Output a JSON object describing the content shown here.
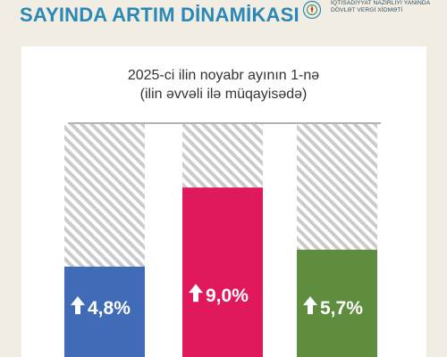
{
  "header": {
    "title": "SAYINDA ARTIM DİNAMİKASI",
    "org_lines": [
      "İQTİSADİYYAT NAZİRLİYİ YANINDA",
      "DÖVLƏT VERGİ XİDMƏTİ"
    ],
    "emblem_icon": "state-emblem-icon"
  },
  "colors": {
    "background": "#f1ede3",
    "header": "#2a88b6",
    "bar_blue": "#3f6bb7",
    "bar_pink": "#e0195c",
    "bar_green": "#5f8d3f",
    "hatch": "#c9c9c9"
  },
  "chart_data": {
    "type": "bar",
    "title": "2025-ci ilin noyabr ayının 1-nə",
    "subtitle": "(ilin əvvəli ilə müqayisədə)",
    "categories": [
      "",
      "",
      ""
    ],
    "values": [
      4.8,
      9.0,
      5.7
    ],
    "value_labels": [
      "4,8%",
      "9,0%",
      "5,7%"
    ],
    "colors": [
      "#3f6bb7",
      "#e0195c",
      "#5f8d3f"
    ],
    "ylim": [
      0,
      10
    ],
    "grid": false,
    "background_bars": "hatched",
    "value_icon": "up-arrow-icon"
  }
}
